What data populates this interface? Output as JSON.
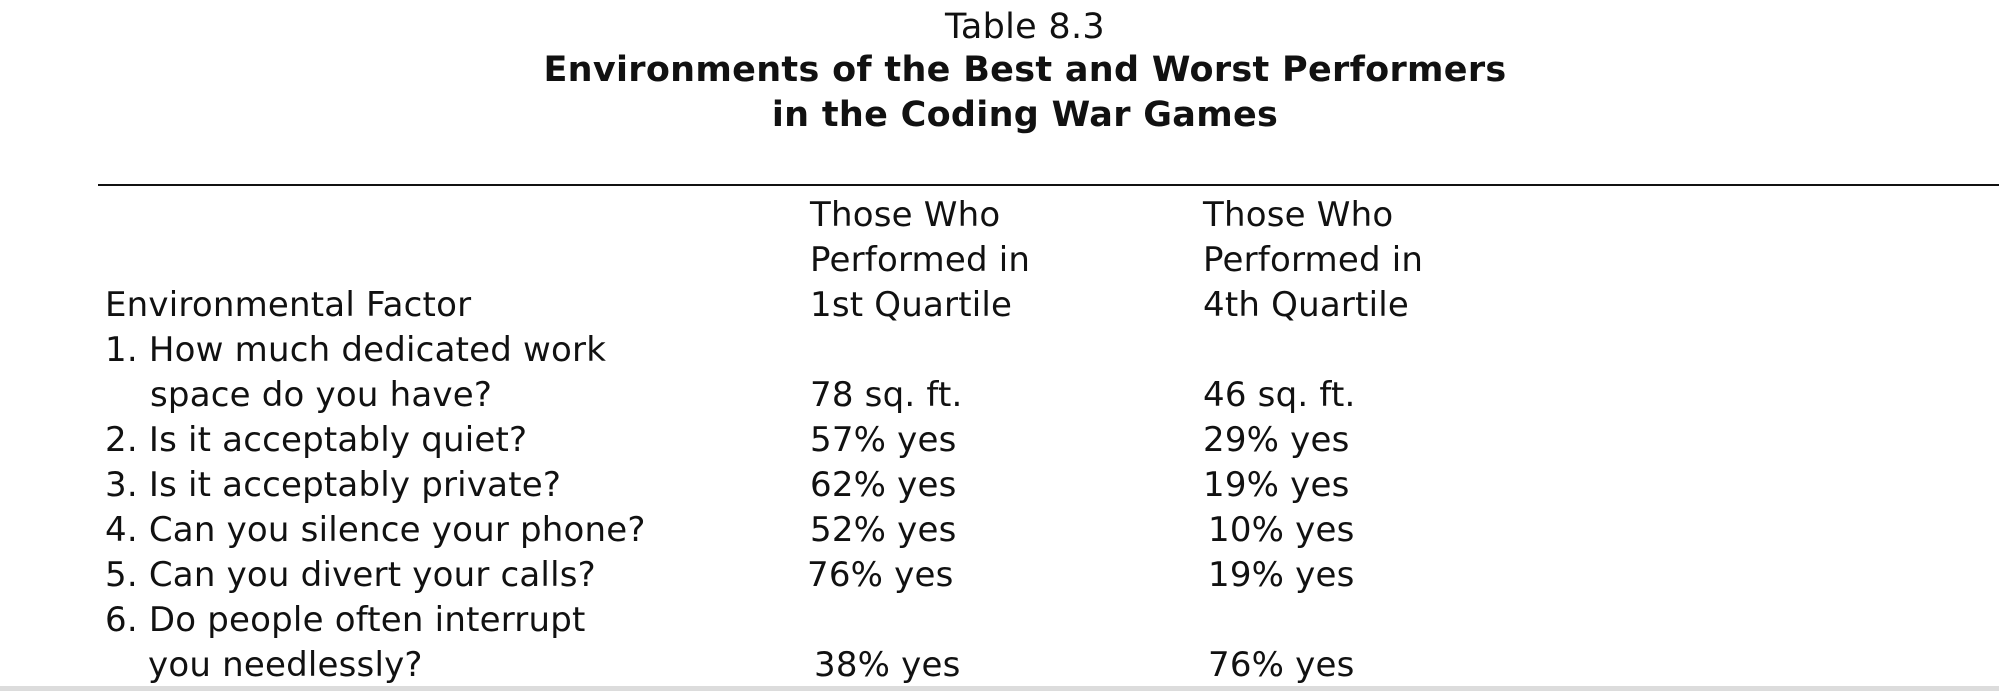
{
  "caption": {
    "number": "Table 8.3",
    "title_line1": "Environments of the Best and Worst Performers",
    "title_line2": "in the Coding War Games"
  },
  "table": {
    "headers": {
      "factor": "Environmental Factor",
      "q1": [
        "Those Who",
        "Performed in",
        "1st Quartile"
      ],
      "q4": [
        "Those Who",
        "Performed in",
        "4th Quartile"
      ]
    },
    "rows": [
      {
        "question": [
          "1. How much dedicated work",
          "space do you have?"
        ],
        "q1": "78 sq. ft.",
        "q4": "46 sq. ft."
      },
      {
        "question": [
          "2. Is it acceptably quiet?"
        ],
        "q1": "57% yes",
        "q4": "29% yes"
      },
      {
        "question": [
          "3. Is it acceptably private?"
        ],
        "q1": "62% yes",
        "q4": "19% yes"
      },
      {
        "question": [
          "4. Can you silence your phone?"
        ],
        "q1": "52% yes",
        "q4": "10% yes"
      },
      {
        "question": [
          "5. Can you divert your calls?"
        ],
        "q1": "76% yes",
        "q4": "19% yes"
      },
      {
        "question": [
          "6. Do people often interrupt",
          "you needlessly?"
        ],
        "q1": "38% yes",
        "q4": "76% yes"
      }
    ]
  }
}
